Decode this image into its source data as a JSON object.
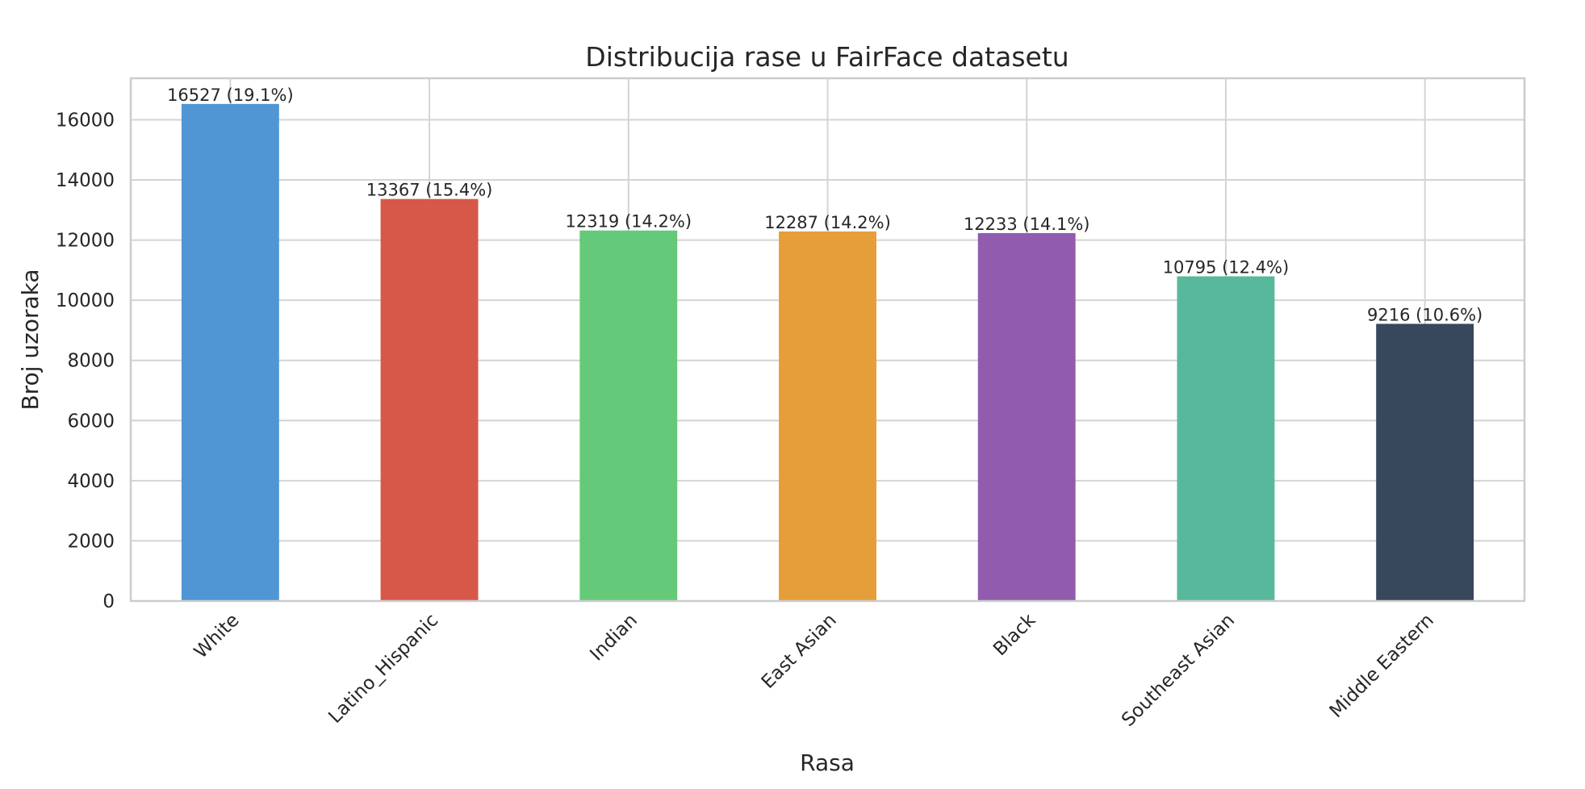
{
  "chart_data": {
    "type": "bar",
    "title": "Distribucija rase u FairFace datasetu",
    "xlabel": "Rasa",
    "ylabel": "Broj uzoraka",
    "categories": [
      "White",
      "Latino_Hispanic",
      "Indian",
      "East Asian",
      "Black",
      "Southeast Asian",
      "Middle Eastern"
    ],
    "values": [
      16527,
      13367,
      12319,
      12287,
      12233,
      10795,
      9216
    ],
    "data_labels": [
      "16527 (19.1%)",
      "13367 (15.4%)",
      "12319 (14.2%)",
      "12287 (14.2%)",
      "12233 (14.1%)",
      "10795 (12.4%)",
      "9216 (10.6%)"
    ],
    "colors": [
      "#5096d5",
      "#d75848",
      "#65c97a",
      "#e59e3a",
      "#915cae",
      "#58b89c",
      "#37475c"
    ],
    "ylim": [
      0,
      17381
    ],
    "yticks": [
      0,
      2000,
      4000,
      6000,
      8000,
      10000,
      12000,
      14000,
      16000
    ],
    "grid": true,
    "legend": "none"
  }
}
